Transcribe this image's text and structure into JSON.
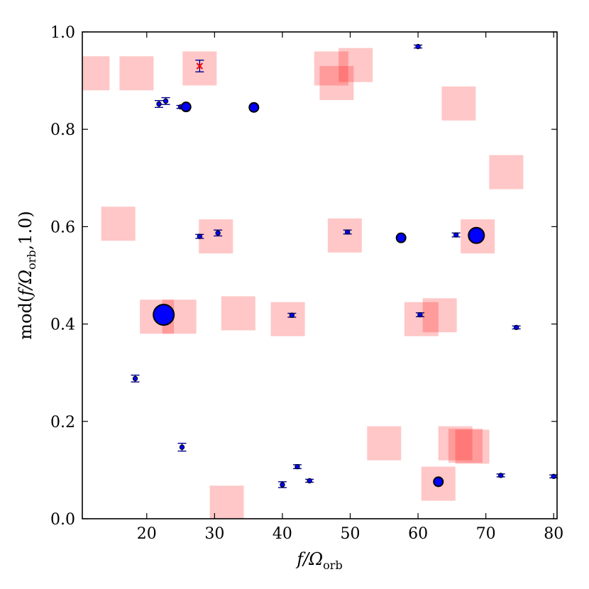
{
  "chart_data": {
    "type": "scatter",
    "title": "",
    "xlabel": "f/Ω",
    "xlabel_sub": "orb",
    "ylabel_prefix": "mod(",
    "ylabel_var": "f/Ω",
    "ylabel_sub": "orb",
    "ylabel_suffix": ",1.0)",
    "xlim": [
      10.5,
      80.5
    ],
    "ylim": [
      0.0,
      1.0
    ],
    "xticks": [
      20,
      30,
      40,
      50,
      60,
      70,
      80
    ],
    "xtick_labels": [
      "20",
      "30",
      "40",
      "50",
      "60",
      "70",
      "80"
    ],
    "yticks": [
      0.0,
      0.2,
      0.4,
      0.6,
      0.8,
      1.0
    ],
    "ytick_labels": [
      "0.0",
      "0.2",
      "0.4",
      "0.6",
      "0.8",
      "1.0"
    ],
    "grid": false,
    "colors": {
      "point_fill": "#0000ff",
      "point_edge": "#000000",
      "errorbar": "#00008b",
      "square_fill": "#ff0000",
      "square_opacity": 0.22,
      "cross": "#ff0000"
    },
    "squares": [
      {
        "x": 12.0,
        "y": 0.915
      },
      {
        "x": 18.5,
        "y": 0.915
      },
      {
        "x": 27.8,
        "y": 0.925
      },
      {
        "x": 47.2,
        "y": 0.925
      },
      {
        "x": 48.0,
        "y": 0.895
      },
      {
        "x": 50.8,
        "y": 0.932
      },
      {
        "x": 66.0,
        "y": 0.853
      },
      {
        "x": 73.0,
        "y": 0.712
      },
      {
        "x": 15.8,
        "y": 0.606
      },
      {
        "x": 30.2,
        "y": 0.58
      },
      {
        "x": 49.2,
        "y": 0.582
      },
      {
        "x": 68.8,
        "y": 0.58
      },
      {
        "x": 21.5,
        "y": 0.415
      },
      {
        "x": 24.8,
        "y": 0.415
      },
      {
        "x": 33.5,
        "y": 0.422
      },
      {
        "x": 40.8,
        "y": 0.41
      },
      {
        "x": 60.5,
        "y": 0.41
      },
      {
        "x": 63.2,
        "y": 0.418
      },
      {
        "x": 55.0,
        "y": 0.155
      },
      {
        "x": 65.5,
        "y": 0.155
      },
      {
        "x": 67.0,
        "y": 0.15
      },
      {
        "x": 68.0,
        "y": 0.148
      },
      {
        "x": 63.0,
        "y": 0.072
      },
      {
        "x": 31.8,
        "y": 0.033
      }
    ],
    "points": [
      {
        "x": 21.8,
        "y": 0.852,
        "err": 0.007,
        "size": "small"
      },
      {
        "x": 22.8,
        "y": 0.858,
        "err": 0.007,
        "size": "small"
      },
      {
        "x": 25.0,
        "y": 0.846,
        "err": 0.003,
        "size": "small"
      },
      {
        "x": 25.8,
        "y": 0.846,
        "err": 0.0,
        "size": "medium"
      },
      {
        "x": 35.8,
        "y": 0.845,
        "err": 0.0,
        "size": "medium"
      },
      {
        "x": 60.0,
        "y": 0.97,
        "err": 0.003,
        "size": "small"
      },
      {
        "x": 27.8,
        "y": 0.58,
        "err": 0.004,
        "size": "small"
      },
      {
        "x": 30.5,
        "y": 0.587,
        "err": 0.006,
        "size": "small"
      },
      {
        "x": 49.6,
        "y": 0.589,
        "err": 0.004,
        "size": "small"
      },
      {
        "x": 57.5,
        "y": 0.577,
        "err": 0.0,
        "size": "medium"
      },
      {
        "x": 65.6,
        "y": 0.583,
        "err": 0.004,
        "size": "small"
      },
      {
        "x": 68.6,
        "y": 0.582,
        "err": 0.0,
        "size": "large"
      },
      {
        "x": 22.5,
        "y": 0.419,
        "err": 0.0,
        "size": "xlarge"
      },
      {
        "x": 41.4,
        "y": 0.418,
        "err": 0.004,
        "size": "small"
      },
      {
        "x": 60.3,
        "y": 0.419,
        "err": 0.004,
        "size": "small"
      },
      {
        "x": 74.5,
        "y": 0.393,
        "err": 0.003,
        "size": "small"
      },
      {
        "x": 18.3,
        "y": 0.288,
        "err": 0.007,
        "size": "small"
      },
      {
        "x": 25.2,
        "y": 0.147,
        "err": 0.008,
        "size": "small"
      },
      {
        "x": 40.0,
        "y": 0.07,
        "err": 0.006,
        "size": "small"
      },
      {
        "x": 42.2,
        "y": 0.107,
        "err": 0.004,
        "size": "small"
      },
      {
        "x": 44.0,
        "y": 0.078,
        "err": 0.003,
        "size": "small"
      },
      {
        "x": 63.0,
        "y": 0.076,
        "err": 0.0,
        "size": "medium"
      },
      {
        "x": 72.2,
        "y": 0.089,
        "err": 0.003,
        "size": "small"
      },
      {
        "x": 80.0,
        "y": 0.087,
        "err": 0.003,
        "size": "small"
      }
    ],
    "crosses": [
      {
        "x": 27.8,
        "y": 0.93,
        "err": 0.012
      }
    ]
  }
}
